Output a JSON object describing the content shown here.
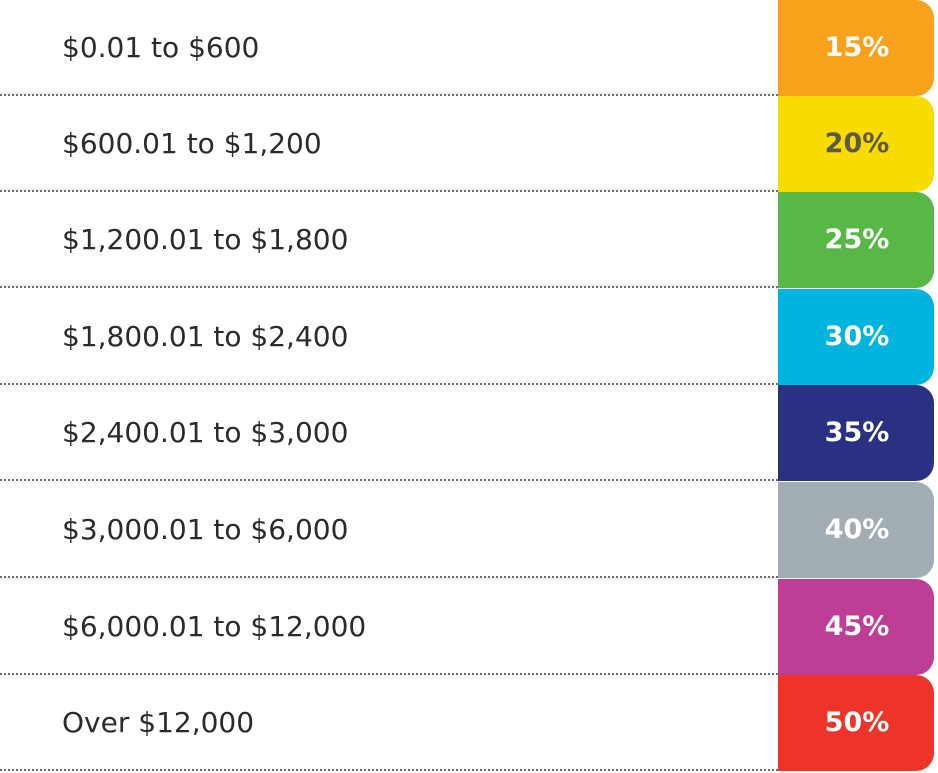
{
  "rows": [
    {
      "range": "$0.01 to $600",
      "rate": "15%",
      "color": "#F9A11B",
      "text_color": "#FFFFFF"
    },
    {
      "range": "$600.01 to $1,200",
      "rate": "20%",
      "color": "#F8DC00",
      "text_color": "#5E5A49"
    },
    {
      "range": "$1,200.01 to $1,800",
      "rate": "25%",
      "color": "#58B846",
      "text_color": "#FFFFFF"
    },
    {
      "range": "$1,800.01 to $2,400",
      "rate": "30%",
      "color": "#00B4E0",
      "text_color": "#FFFFFF"
    },
    {
      "range": "$2,400.01 to $3,000",
      "rate": "35%",
      "color": "#2A3182",
      "text_color": "#FFFFFF"
    },
    {
      "range": "$3,000.01 to $6,000",
      "rate": "40%",
      "color": "#A2ACB3",
      "text_color": "#FFFFFF"
    },
    {
      "range": "$6,000.01 to $12,000",
      "rate": "45%",
      "color": "#BE3E96",
      "text_color": "#FFFFFF"
    },
    {
      "range": "Over $12,000",
      "rate": "50%",
      "color": "#EE3428",
      "text_color": "#FFFFFF"
    }
  ]
}
